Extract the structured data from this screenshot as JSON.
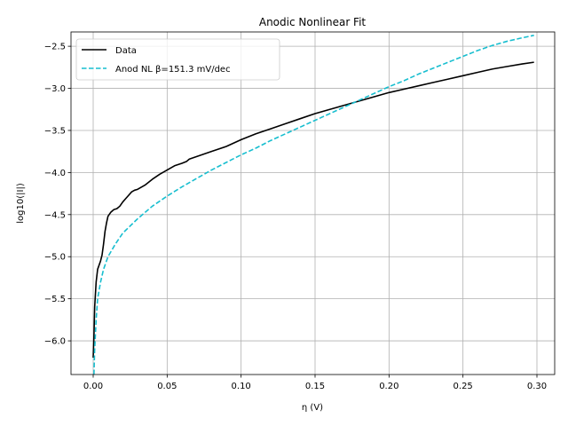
{
  "chart_data": {
    "type": "line",
    "title": "Anodic Nonlinear Fit",
    "xlabel": "η (V)",
    "ylabel": "log10(|I|)",
    "xlim": [
      -0.015,
      0.312
    ],
    "ylim": [
      -6.4,
      -2.33
    ],
    "xticks": [
      0.0,
      0.05,
      0.1,
      0.15,
      0.2,
      0.25,
      0.3
    ],
    "xtick_labels": [
      "0.00",
      "0.05",
      "0.10",
      "0.15",
      "0.20",
      "0.25",
      "0.30"
    ],
    "yticks": [
      -6.0,
      -5.5,
      -5.0,
      -4.5,
      -4.0,
      -3.5,
      -3.0,
      -2.5
    ],
    "ytick_labels": [
      "−6.0",
      "−5.5",
      "−5.0",
      "−4.5",
      "−4.0",
      "−3.5",
      "−3.0",
      "−2.5"
    ],
    "grid": true,
    "legend": "upper-left",
    "series": [
      {
        "name": "Data",
        "color": "#000000",
        "style": "solid",
        "points": [
          [
            0.0,
            -6.2
          ],
          [
            0.0005,
            -5.95
          ],
          [
            0.001,
            -5.6
          ],
          [
            0.002,
            -5.3
          ],
          [
            0.003,
            -5.15
          ],
          [
            0.005,
            -5.05
          ],
          [
            0.006,
            -4.98
          ],
          [
            0.007,
            -4.85
          ],
          [
            0.008,
            -4.7
          ],
          [
            0.009,
            -4.6
          ],
          [
            0.01,
            -4.52
          ],
          [
            0.012,
            -4.47
          ],
          [
            0.014,
            -4.44
          ],
          [
            0.016,
            -4.43
          ],
          [
            0.018,
            -4.4
          ],
          [
            0.02,
            -4.35
          ],
          [
            0.022,
            -4.31
          ],
          [
            0.024,
            -4.27
          ],
          [
            0.026,
            -4.23
          ],
          [
            0.028,
            -4.21
          ],
          [
            0.03,
            -4.2
          ],
          [
            0.035,
            -4.15
          ],
          [
            0.04,
            -4.08
          ],
          [
            0.045,
            -4.02
          ],
          [
            0.05,
            -3.97
          ],
          [
            0.055,
            -3.92
          ],
          [
            0.06,
            -3.89
          ],
          [
            0.063,
            -3.87
          ],
          [
            0.065,
            -3.84
          ],
          [
            0.07,
            -3.81
          ],
          [
            0.08,
            -3.75
          ],
          [
            0.09,
            -3.69
          ],
          [
            0.1,
            -3.61
          ],
          [
            0.11,
            -3.54
          ],
          [
            0.12,
            -3.48
          ],
          [
            0.13,
            -3.42
          ],
          [
            0.14,
            -3.36
          ],
          [
            0.15,
            -3.3
          ],
          [
            0.16,
            -3.25
          ],
          [
            0.17,
            -3.2
          ],
          [
            0.18,
            -3.15
          ],
          [
            0.19,
            -3.1
          ],
          [
            0.2,
            -3.05
          ],
          [
            0.21,
            -3.01
          ],
          [
            0.22,
            -2.97
          ],
          [
            0.23,
            -2.93
          ],
          [
            0.24,
            -2.89
          ],
          [
            0.25,
            -2.85
          ],
          [
            0.26,
            -2.81
          ],
          [
            0.27,
            -2.77
          ],
          [
            0.28,
            -2.74
          ],
          [
            0.29,
            -2.71
          ],
          [
            0.298,
            -2.69
          ]
        ]
      },
      {
        "name": "Anod NL β=151.3 mV/dec",
        "color": "#17becf",
        "style": "dashed",
        "points": [
          [
            0.0005,
            -6.4
          ],
          [
            0.001,
            -6.1
          ],
          [
            0.002,
            -5.75
          ],
          [
            0.003,
            -5.5
          ],
          [
            0.005,
            -5.3
          ],
          [
            0.007,
            -5.15
          ],
          [
            0.01,
            -5.0
          ],
          [
            0.015,
            -4.85
          ],
          [
            0.02,
            -4.72
          ],
          [
            0.03,
            -4.55
          ],
          [
            0.04,
            -4.4
          ],
          [
            0.05,
            -4.28
          ],
          [
            0.06,
            -4.17
          ],
          [
            0.07,
            -4.07
          ],
          [
            0.08,
            -3.97
          ],
          [
            0.09,
            -3.88
          ],
          [
            0.1,
            -3.79
          ],
          [
            0.11,
            -3.71
          ],
          [
            0.12,
            -3.62
          ],
          [
            0.13,
            -3.54
          ],
          [
            0.14,
            -3.46
          ],
          [
            0.15,
            -3.38
          ],
          [
            0.16,
            -3.3
          ],
          [
            0.17,
            -3.22
          ],
          [
            0.18,
            -3.14
          ],
          [
            0.19,
            -3.06
          ],
          [
            0.2,
            -2.98
          ],
          [
            0.21,
            -2.91
          ],
          [
            0.22,
            -2.83
          ],
          [
            0.23,
            -2.76
          ],
          [
            0.24,
            -2.69
          ],
          [
            0.25,
            -2.62
          ],
          [
            0.26,
            -2.55
          ],
          [
            0.27,
            -2.49
          ],
          [
            0.28,
            -2.44
          ],
          [
            0.29,
            -2.4
          ],
          [
            0.298,
            -2.37
          ]
        ]
      }
    ]
  }
}
